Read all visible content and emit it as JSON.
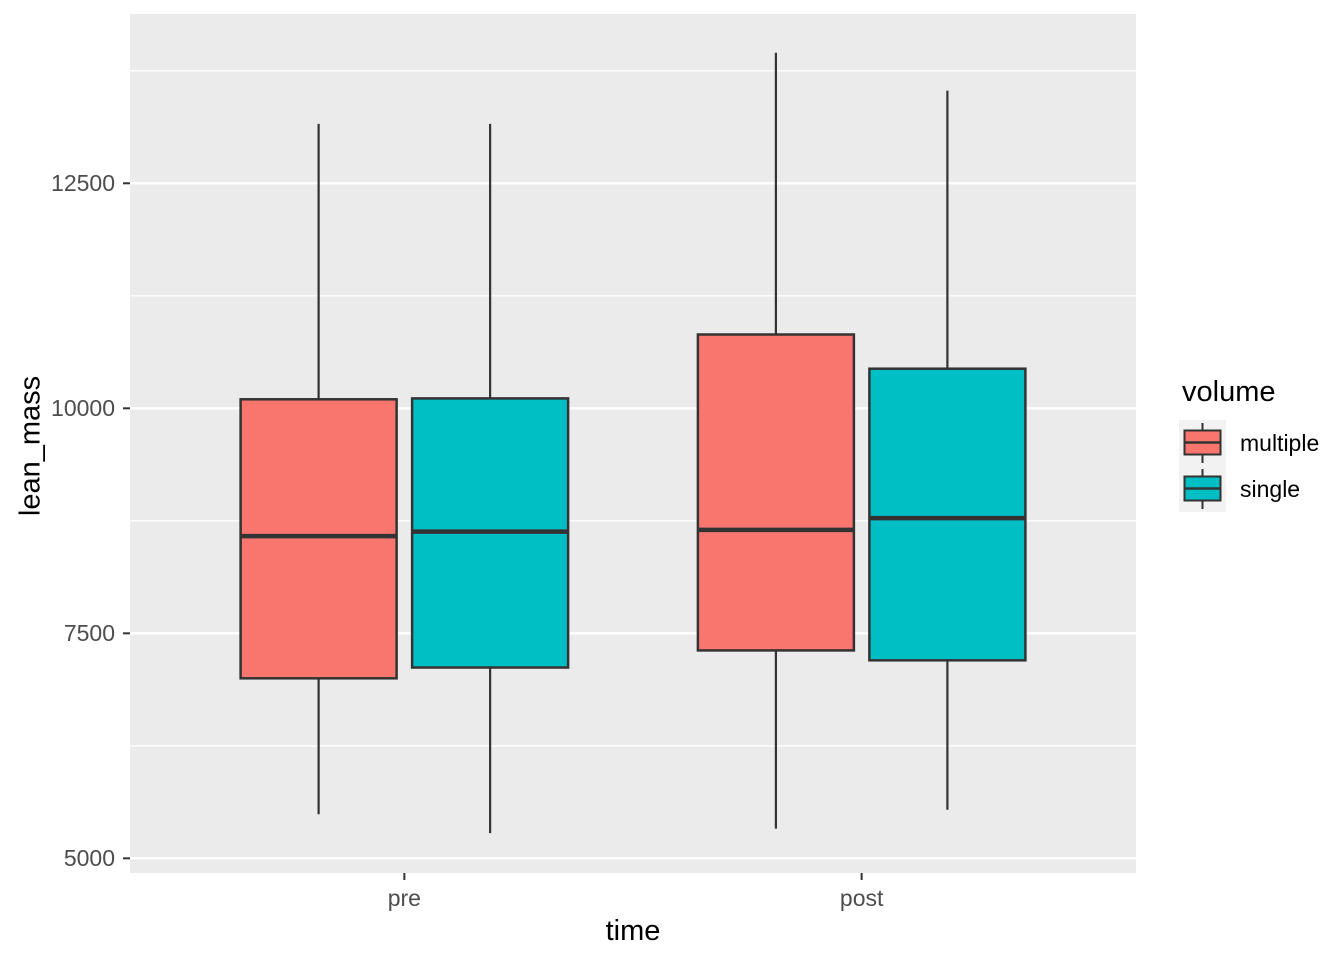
{
  "chart_data": {
    "type": "boxplot",
    "title": "",
    "xlabel": "time",
    "ylabel": "lean_mass",
    "categories": [
      "pre",
      "post"
    ],
    "y_ticks": [
      5000,
      7500,
      10000,
      12500
    ],
    "y_tick_labels": [
      "5000",
      "7500",
      "10000",
      "12500"
    ],
    "y_minor_ticks": [
      6250,
      8750,
      11250,
      13750
    ],
    "ylim": [
      4837,
      14381
    ],
    "legend_position": "right",
    "legend_title": "volume",
    "grid": "white major+minor horizontal gridlines on grey panel",
    "series": [
      {
        "name": "multiple",
        "color": "#F8766D",
        "boxes": [
          {
            "category": "pre",
            "whisker_low": 5490,
            "q1": 7000,
            "median": 8580,
            "q3": 10100,
            "whisker_high": 13160
          },
          {
            "category": "post",
            "whisker_low": 5330,
            "q1": 7310,
            "median": 8650,
            "q3": 10820,
            "whisker_high": 13950
          }
        ]
      },
      {
        "name": "single",
        "color": "#00BFC4",
        "boxes": [
          {
            "category": "pre",
            "whisker_low": 5280,
            "q1": 7120,
            "median": 8630,
            "q3": 10110,
            "whisker_high": 13160
          },
          {
            "category": "post",
            "whisker_low": 5540,
            "q1": 7200,
            "median": 8780,
            "q3": 10440,
            "whisker_high": 13530
          }
        ]
      }
    ],
    "colors": {
      "panel_bg": "#EBEBEB",
      "grid": "#FFFFFF",
      "box_border": "#333333",
      "tick_mark": "#333333",
      "tick_text": "#4D4D4D",
      "title_text": "#000000",
      "legend_key_bg": "#F2F2F2"
    }
  }
}
